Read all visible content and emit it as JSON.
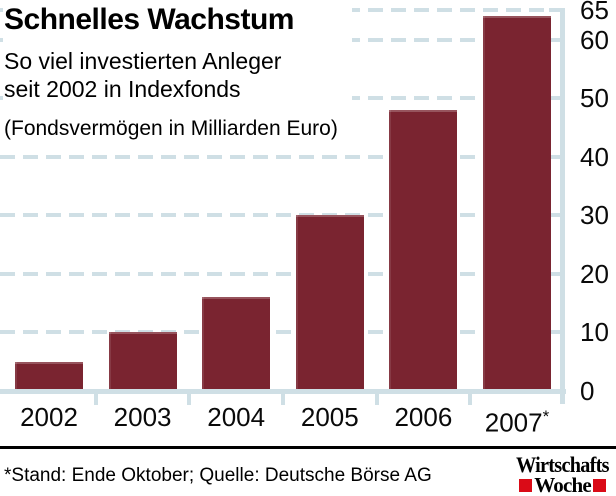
{
  "header": {
    "title": "Schnelles Wachstum",
    "subtitle": "So viel investierten Anleger\nseit 2002 in Indexfonds",
    "unit_note": "(Fondsvermögen in Milliarden Euro)"
  },
  "footer": {
    "footnote": "*Stand: Ende Oktober; Quelle: Deutsche Börse AG",
    "logo_line1": "Wirtschafts",
    "logo_line2": "Woche"
  },
  "colors": {
    "bar": "#7a2430",
    "axis_grid": "#cfdfe5",
    "logo_red": "#da0b17"
  },
  "chart_data": {
    "type": "bar",
    "categories": [
      "2002",
      "2003",
      "2004",
      "2005",
      "2006",
      "2007*"
    ],
    "values": [
      5,
      10,
      16,
      30,
      48,
      64
    ],
    "title": "Schnelles Wachstum",
    "subtitle": "So viel investierten Anleger seit 2002 in Indexfonds",
    "xlabel": "",
    "ylabel": "Fondsvermögen in Milliarden Euro",
    "ylim": [
      0,
      65
    ],
    "yticks": [
      0,
      10,
      20,
      30,
      40,
      50,
      60,
      65
    ],
    "gridlines": [
      10,
      20,
      30,
      40,
      50,
      60,
      65
    ],
    "grid": "dashed-horizontal",
    "axis_side": "right",
    "legend": "none"
  }
}
